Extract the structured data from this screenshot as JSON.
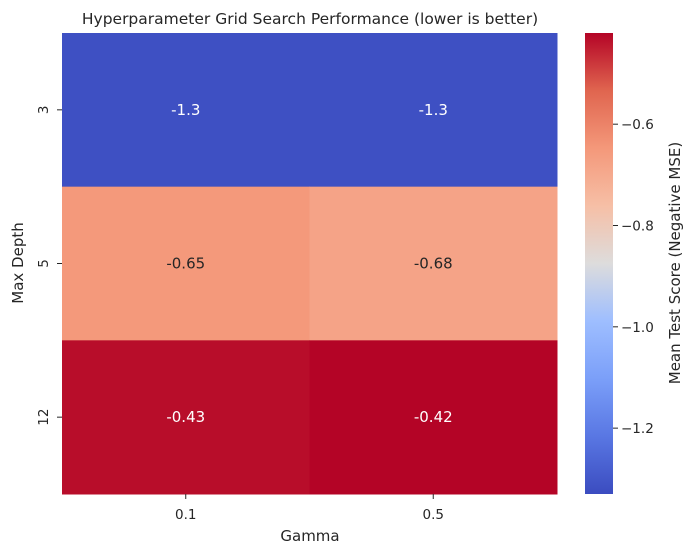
{
  "chart_data": {
    "type": "heatmap",
    "title": "Hyperparameter Grid Search Performance (lower is better)",
    "xlabel": "Gamma",
    "ylabel": "Max Depth",
    "x_categories": [
      "0.1",
      "0.5"
    ],
    "y_categories": [
      "3",
      "5",
      "12"
    ],
    "values": [
      [
        -1.32,
        -1.32
      ],
      [
        -0.65,
        -0.68
      ],
      [
        -0.43,
        -0.42
      ]
    ],
    "annotations": [
      [
        "-1.3",
        "-1.3"
      ],
      [
        "-0.65",
        "-0.68"
      ],
      [
        "-0.43",
        "-0.42"
      ]
    ],
    "colormap": "coolwarm",
    "colorbar": {
      "label": "Mean Test Score (Negative MSE)",
      "range": [
        -1.33,
        -0.42
      ],
      "ticks": [
        -0.6,
        -0.8,
        -1.0,
        -1.2
      ],
      "tick_labels": [
        "−0.6",
        "−0.8",
        "−1.0",
        "−1.2"
      ]
    },
    "grid": false,
    "legend": "colorbar-right"
  }
}
